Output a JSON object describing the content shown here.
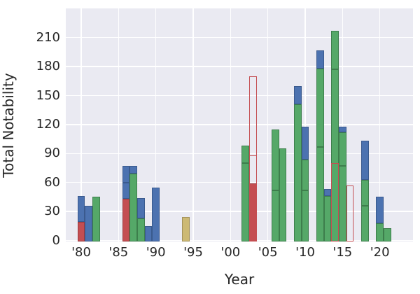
{
  "chart_data": {
    "type": "bar",
    "subtype": "stacked-histogram",
    "title": "",
    "xlabel": "Year",
    "ylabel": "Total Notability",
    "ylim": [
      0,
      240
    ],
    "grid": true,
    "legend": "none",
    "y_ticks": [
      0,
      30,
      60,
      90,
      120,
      150,
      180,
      210
    ],
    "x_ticks": [
      {
        "label": "'80",
        "year": 1980
      },
      {
        "label": "'85",
        "year": 1985
      },
      {
        "label": "'90",
        "year": 1990
      },
      {
        "label": "'95",
        "year": 1995
      },
      {
        "label": "'00",
        "year": 2000
      },
      {
        "label": "'05",
        "year": 2005
      },
      {
        "label": "'10",
        "year": 2010
      },
      {
        "label": "'15",
        "year": 2015
      },
      {
        "label": "'20",
        "year": 2020
      }
    ],
    "colors": {
      "blue": "#4c72b0",
      "green": "#55a868",
      "red": "#c44e52",
      "tan": "#ccb974",
      "edge_blue": "#3a5a8e",
      "edge_green": "#3d7e4c",
      "edge_red": "#9c3a3e",
      "edge_tan": "#a3925a",
      "outline": "#c44e52",
      "plot_bg": "#eaeaf2",
      "grid": "#ffffff",
      "text": "#262626"
    },
    "bars": [
      {
        "year": 1980,
        "segments": [
          [
            "red",
            19
          ],
          [
            "blue",
            27
          ]
        ]
      },
      {
        "year": 1981,
        "segments": [
          [
            "blue",
            36
          ]
        ]
      },
      {
        "year": 1982,
        "segments": [
          [
            "green",
            45
          ]
        ]
      },
      {
        "year": 1986,
        "segments": [
          [
            "red",
            43
          ],
          [
            "blue",
            17
          ],
          [
            "blue",
            17
          ]
        ]
      },
      {
        "year": 1987,
        "segments": [
          [
            "green",
            69
          ],
          [
            "blue",
            8
          ]
        ]
      },
      {
        "year": 1988,
        "segments": [
          [
            "green",
            23
          ],
          [
            "blue",
            21
          ]
        ]
      },
      {
        "year": 1989,
        "segments": [
          [
            "blue",
            15
          ]
        ]
      },
      {
        "year": 1990,
        "segments": [
          [
            "blue",
            55
          ]
        ]
      },
      {
        "year": 1994,
        "segments": [
          [
            "tan",
            24
          ]
        ]
      },
      {
        "year": 2002,
        "segments": [
          [
            "green",
            80
          ],
          [
            "green",
            18
          ]
        ]
      },
      {
        "year": 2003,
        "segments": [
          [
            "red",
            59
          ]
        ],
        "outline": {
          "to": 170,
          "dividers": [
            89
          ]
        }
      },
      {
        "year": 2006,
        "segments": [
          [
            "green",
            52
          ],
          [
            "green",
            63
          ]
        ]
      },
      {
        "year": 2007,
        "segments": [
          [
            "green",
            95
          ]
        ]
      },
      {
        "year": 2009,
        "segments": [
          [
            "green",
            141
          ],
          [
            "blue",
            19
          ]
        ]
      },
      {
        "year": 2010,
        "segments": [
          [
            "green",
            52
          ],
          [
            "green",
            32
          ],
          [
            "blue",
            34
          ]
        ]
      },
      {
        "year": 2012,
        "segments": [
          [
            "green",
            97
          ],
          [
            "green",
            81
          ],
          [
            "blue",
            19
          ]
        ]
      },
      {
        "year": 2013,
        "segments": [
          [
            "green",
            46
          ],
          [
            "blue",
            7
          ]
        ]
      },
      {
        "year": 2014,
        "segments": [
          [
            "green",
            177
          ],
          [
            "green",
            40
          ]
        ],
        "outline": {
          "to": 80,
          "dividers": []
        }
      },
      {
        "year": 2015,
        "segments": [
          [
            "green",
            77
          ],
          [
            "green",
            35
          ],
          [
            "blue",
            6
          ]
        ]
      },
      {
        "year": 2016,
        "segments": [],
        "outline": {
          "to": 57,
          "dividers": []
        }
      },
      {
        "year": 2018,
        "segments": [
          [
            "green",
            36
          ],
          [
            "green",
            27
          ],
          [
            "blue",
            40
          ]
        ]
      },
      {
        "year": 2020,
        "segments": [
          [
            "green",
            18
          ],
          [
            "blue",
            27
          ]
        ]
      },
      {
        "year": 2021,
        "segments": [
          [
            "green",
            13
          ]
        ]
      }
    ]
  }
}
